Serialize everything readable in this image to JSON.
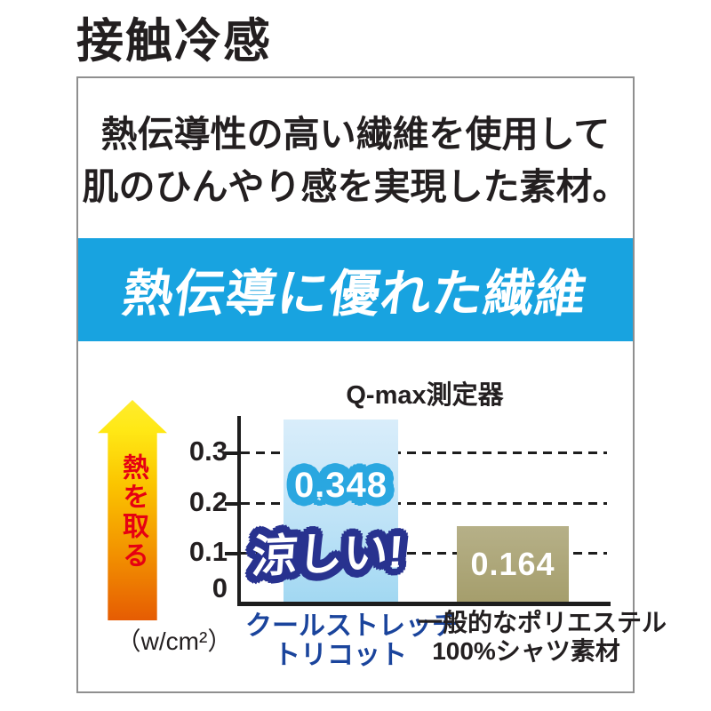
{
  "header": {
    "title": "接触冷感"
  },
  "panel": {
    "description_line1": "熱伝導性の高い繊維を使用して",
    "description_line2": "肌のひんやり感を実現した素材。",
    "banner_text": "熱伝導に優れた繊維"
  },
  "chart": {
    "title": "Q-max測定器",
    "arrow_label": "熱を取る",
    "unit_label": "（w/cm²）",
    "yticks": {
      "t3": "0.3",
      "t2": "0.2",
      "t1": "0.1",
      "t0": "0"
    },
    "bar1": {
      "value_label": "0.348",
      "callout": "涼しい!",
      "category_line1": "クールストレッチ",
      "category_line2": "トリコット"
    },
    "bar2": {
      "value_label": "0.164",
      "category_line1": "一般的なポリエステル",
      "category_line2": "100%シャツ素材"
    }
  },
  "colors": {
    "banner_blue": "#18a3e0",
    "bar1_blue": "#bfe3f7",
    "bar1_outline_blue": "#2aa7e0",
    "callout_navy": "#28328f",
    "bar2_khaki": "#aca678",
    "category_blue": "#1a449c",
    "arrow_red_text": "#e60012",
    "arrow_gradient_bottom": "#e65c03",
    "arrow_gradient_top": "#ffec2e",
    "text_black": "#231f20"
  },
  "chart_data": {
    "type": "bar",
    "title": "Q-max測定器",
    "categories": [
      "クールストレッチトリコット",
      "一般的なポリエステル100%シャツ素材"
    ],
    "values": [
      0.348,
      0.164
    ],
    "value_labels": [
      "0.348",
      "0.164"
    ],
    "annotations": [
      "涼しい!"
    ],
    "xlabel": "",
    "ylabel": "（w/cm²）",
    "yticks": [
      0,
      0.1,
      0.2,
      0.3
    ],
    "ylim": [
      0,
      0.375
    ],
    "grid": "horizontal-dashed",
    "legend_position": "none",
    "bar_colors": [
      "#bfe3f7",
      "#aca678"
    ],
    "extra_axis_note": "熱を取る (upward gradient arrow beside y-axis)"
  }
}
